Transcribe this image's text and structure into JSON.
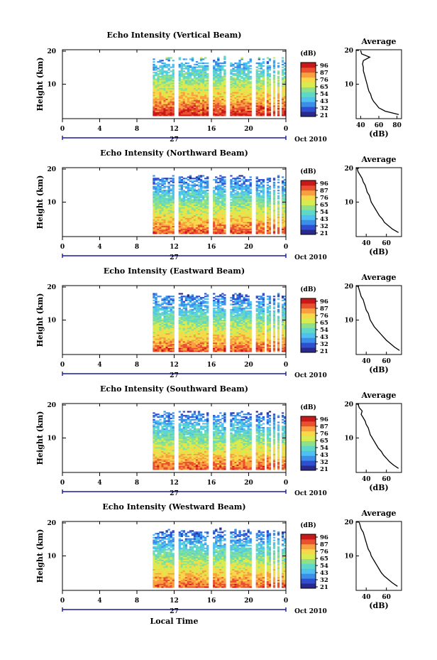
{
  "chart_data": [
    {
      "type": "heatmap",
      "title": "Echo Intensity (Vertical Beam)",
      "xlabel": "",
      "ylabel": "Height (km)",
      "x_ticks": [
        "0",
        "4",
        "8",
        "12",
        "16",
        "20",
        "0"
      ],
      "y_ticks": [
        "10",
        "20"
      ],
      "date_label": "27",
      "date_suffix": "Oct 2010",
      "colorbar": {
        "unit": "(dB)",
        "levels": [
          "96",
          "87",
          "76",
          "65",
          "54",
          "43",
          "32",
          "21"
        ]
      },
      "data_window_hours": [
        9.7,
        24
      ],
      "gaps_hours": [
        [
          11.9,
          12.4
        ],
        [
          15.8,
          16.1
        ],
        [
          17.6,
          17.9
        ],
        [
          20.4,
          20.8
        ],
        [
          21.8,
          21.95
        ],
        [
          22.3,
          22.6
        ],
        [
          22.8,
          23.0
        ],
        [
          23.3,
          23.5
        ]
      ],
      "profile": {
        "title": "Average",
        "xlabel": "(dB)",
        "x_ticks": [
          "40",
          "60",
          "80"
        ],
        "y_ticks": [
          "10",
          "20"
        ],
        "xlim": [
          35,
          85
        ],
        "ylim": [
          0,
          20
        ],
        "heights_km": [
          1,
          2,
          3,
          4,
          5,
          6,
          7,
          8,
          9,
          10,
          11,
          12,
          13,
          14,
          15,
          16,
          17,
          18,
          19,
          20
        ],
        "values_db": [
          82,
          67,
          60,
          57,
          54,
          52,
          51,
          49,
          48,
          47,
          46,
          45,
          44,
          43,
          43,
          42,
          43,
          50,
          41,
          40
        ]
      }
    },
    {
      "type": "heatmap",
      "title": "Echo Intensity (Northward Beam)",
      "xlabel": "",
      "ylabel": "Height (km)",
      "x_ticks": [
        "0",
        "4",
        "8",
        "12",
        "16",
        "20",
        "0"
      ],
      "y_ticks": [
        "10",
        "20"
      ],
      "date_label": "27",
      "date_suffix": "Oct 2010",
      "colorbar": {
        "unit": "(dB)",
        "levels": [
          "96",
          "87",
          "76",
          "65",
          "54",
          "43",
          "32",
          "21"
        ]
      },
      "data_window_hours": [
        9.7,
        24
      ],
      "gaps_hours": [
        [
          11.9,
          12.4
        ],
        [
          15.8,
          16.1
        ],
        [
          17.6,
          17.9
        ],
        [
          20.4,
          20.8
        ],
        [
          21.8,
          21.95
        ],
        [
          22.3,
          22.6
        ],
        [
          22.8,
          23.0
        ],
        [
          23.3,
          23.5
        ]
      ],
      "profile": {
        "title": "Average",
        "xlabel": "(dB)",
        "x_ticks": [
          "40",
          "60"
        ],
        "y_ticks": [
          "10",
          "20"
        ],
        "xlim": [
          30,
          75
        ],
        "ylim": [
          0,
          20
        ],
        "heights_km": [
          1,
          2,
          3,
          4,
          5,
          6,
          7,
          8,
          9,
          10,
          11,
          12,
          13,
          14,
          15,
          16,
          17,
          18,
          19,
          20
        ],
        "values_db": [
          72,
          66,
          62,
          58,
          56,
          53,
          51,
          49,
          47,
          45,
          44,
          43,
          41,
          40,
          39,
          37,
          36,
          34,
          32,
          31
        ]
      }
    },
    {
      "type": "heatmap",
      "title": "Echo Intensity (Eastward Beam)",
      "xlabel": "",
      "ylabel": "Height (km)",
      "x_ticks": [
        "0",
        "4",
        "8",
        "12",
        "16",
        "20",
        "0"
      ],
      "y_ticks": [
        "10",
        "20"
      ],
      "date_label": "27",
      "date_suffix": "Oct 2010",
      "colorbar": {
        "unit": "(dB)",
        "levels": [
          "96",
          "87",
          "76",
          "65",
          "54",
          "43",
          "32",
          "21"
        ]
      },
      "data_window_hours": [
        9.7,
        24
      ],
      "gaps_hours": [
        [
          11.9,
          12.4
        ],
        [
          15.8,
          16.1
        ],
        [
          17.6,
          17.9
        ],
        [
          20.4,
          20.8
        ],
        [
          21.8,
          21.95
        ],
        [
          22.3,
          22.6
        ],
        [
          22.8,
          23.0
        ],
        [
          23.3,
          23.5
        ]
      ],
      "profile": {
        "title": "Average",
        "xlabel": "(dB)",
        "x_ticks": [
          "40",
          "60"
        ],
        "y_ticks": [
          "10",
          "20"
        ],
        "xlim": [
          30,
          75
        ],
        "ylim": [
          0,
          20
        ],
        "heights_km": [
          1,
          2,
          3,
          4,
          5,
          6,
          7,
          8,
          9,
          10,
          11,
          12,
          13,
          14,
          15,
          16,
          17,
          18,
          19,
          20
        ],
        "values_db": [
          73,
          68,
          64,
          60,
          57,
          54,
          51,
          48,
          46,
          44,
          43,
          42,
          40,
          39,
          38,
          37,
          35,
          34,
          33,
          32
        ]
      }
    },
    {
      "type": "heatmap",
      "title": "Echo Intensity (Southward Beam)",
      "xlabel": "",
      "ylabel": "Height (km)",
      "x_ticks": [
        "0",
        "4",
        "8",
        "12",
        "16",
        "20",
        "0"
      ],
      "y_ticks": [
        "10",
        "20"
      ],
      "date_label": "27",
      "date_suffix": "Oct 2010",
      "colorbar": {
        "unit": "(dB)",
        "levels": [
          "96",
          "87",
          "76",
          "65",
          "54",
          "43",
          "32",
          "21"
        ]
      },
      "data_window_hours": [
        9.7,
        24
      ],
      "gaps_hours": [
        [
          11.9,
          12.4
        ],
        [
          15.8,
          16.1
        ],
        [
          17.6,
          17.9
        ],
        [
          20.4,
          20.8
        ],
        [
          21.8,
          21.95
        ],
        [
          22.3,
          22.6
        ],
        [
          22.8,
          23.0
        ],
        [
          23.3,
          23.5
        ]
      ],
      "profile": {
        "title": "Average",
        "xlabel": "(dB)",
        "x_ticks": [
          "40",
          "60"
        ],
        "y_ticks": [
          "10",
          "20"
        ],
        "xlim": [
          30,
          75
        ],
        "ylim": [
          0,
          20
        ],
        "heights_km": [
          1,
          2,
          3,
          4,
          5,
          6,
          7,
          8,
          9,
          10,
          11,
          12,
          13,
          14,
          15,
          16,
          17,
          18,
          19,
          20
        ],
        "values_db": [
          72,
          67,
          63,
          60,
          57,
          55,
          52,
          50,
          48,
          46,
          44,
          43,
          42,
          40,
          39,
          37,
          35,
          36,
          33,
          32
        ]
      }
    },
    {
      "type": "heatmap",
      "title": "Echo Intensity (Westward Beam)",
      "xlabel": "Local Time",
      "ylabel": "Height (km)",
      "x_ticks": [
        "0",
        "4",
        "8",
        "12",
        "16",
        "20",
        "0"
      ],
      "y_ticks": [
        "10",
        "20"
      ],
      "date_label": "27",
      "date_suffix": "Oct 2010",
      "colorbar": {
        "unit": "(dB)",
        "levels": [
          "96",
          "87",
          "76",
          "65",
          "54",
          "43",
          "32",
          "21"
        ]
      },
      "data_window_hours": [
        9.7,
        24
      ],
      "gaps_hours": [
        [
          11.9,
          12.4
        ],
        [
          15.8,
          16.1
        ],
        [
          17.6,
          17.9
        ],
        [
          20.4,
          20.8
        ],
        [
          21.8,
          21.95
        ],
        [
          22.3,
          22.6
        ],
        [
          22.8,
          23.0
        ],
        [
          23.3,
          23.5
        ]
      ],
      "profile": {
        "title": "Average",
        "xlabel": "(dB)",
        "x_ticks": [
          "40",
          "60"
        ],
        "y_ticks": [
          "10",
          "20"
        ],
        "xlim": [
          30,
          75
        ],
        "ylim": [
          0,
          20
        ],
        "heights_km": [
          1,
          2,
          3,
          4,
          5,
          6,
          7,
          8,
          9,
          10,
          11,
          12,
          13,
          14,
          15,
          16,
          17,
          18,
          19,
          20
        ],
        "values_db": [
          71,
          66,
          62,
          58,
          55,
          53,
          51,
          49,
          47,
          45,
          44,
          42,
          41,
          40,
          39,
          38,
          37,
          35,
          34,
          33
        ]
      }
    }
  ],
  "palette": [
    "#2a2a8c",
    "#2f4fd0",
    "#3a8fe8",
    "#4fc0f0",
    "#5fd8c8",
    "#8ee08a",
    "#d8ec50",
    "#f8d848",
    "#f8a040",
    "#e85030",
    "#c81818"
  ]
}
